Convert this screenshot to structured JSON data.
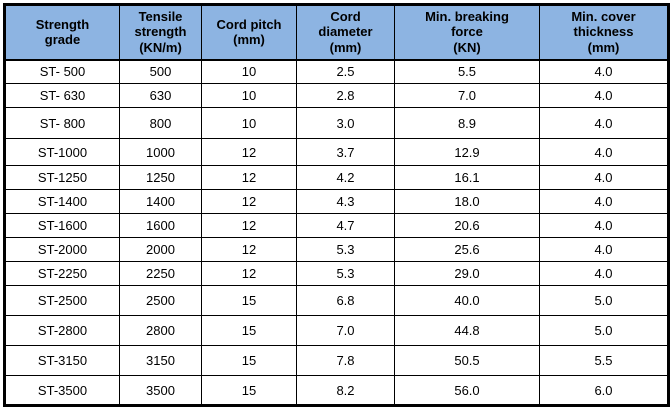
{
  "colors": {
    "header_bg": "#8DB4E2",
    "border": "#000000",
    "row_bg": "#FFFFFF",
    "text": "#000000"
  },
  "table": {
    "headers": [
      "Strength\ngrade",
      "Tensile\nstrength\n(KN/m)",
      "Cord pitch\n(mm)",
      "Cord\ndiameter\n(mm)",
      "Min. breaking\nforce\n(KN)",
      "Min. cover\nthickness\n(mm)"
    ],
    "rows": [
      [
        "ST- 500",
        "500",
        "10",
        "2.5",
        "5.5",
        "4.0"
      ],
      [
        "ST- 630",
        "630",
        "10",
        "2.8",
        "7.0",
        "4.0"
      ],
      [
        "ST- 800",
        "800",
        "10",
        "3.0",
        "8.9",
        "4.0"
      ],
      [
        "ST-1000",
        "1000",
        "12",
        "3.7",
        "12.9",
        "4.0"
      ],
      [
        "ST-1250",
        "1250",
        "12",
        "4.2",
        "16.1",
        "4.0"
      ],
      [
        "ST-1400",
        "1400",
        "12",
        "4.3",
        "18.0",
        "4.0"
      ],
      [
        "ST-1600",
        "1600",
        "12",
        "4.7",
        "20.6",
        "4.0"
      ],
      [
        "ST-2000",
        "2000",
        "12",
        "5.3",
        "25.6",
        "4.0"
      ],
      [
        "ST-2250",
        "2250",
        "12",
        "5.3",
        "29.0",
        "4.0"
      ],
      [
        "ST-2500",
        "2500",
        "15",
        "6.8",
        "40.0",
        "5.0"
      ],
      [
        "ST-2800",
        "2800",
        "15",
        "7.0",
        "44.8",
        "5.0"
      ],
      [
        "ST-3150",
        "3150",
        "15",
        "7.8",
        "50.5",
        "5.5"
      ],
      [
        "ST-3500",
        "3500",
        "15",
        "8.2",
        "56.0",
        "6.0"
      ]
    ]
  }
}
